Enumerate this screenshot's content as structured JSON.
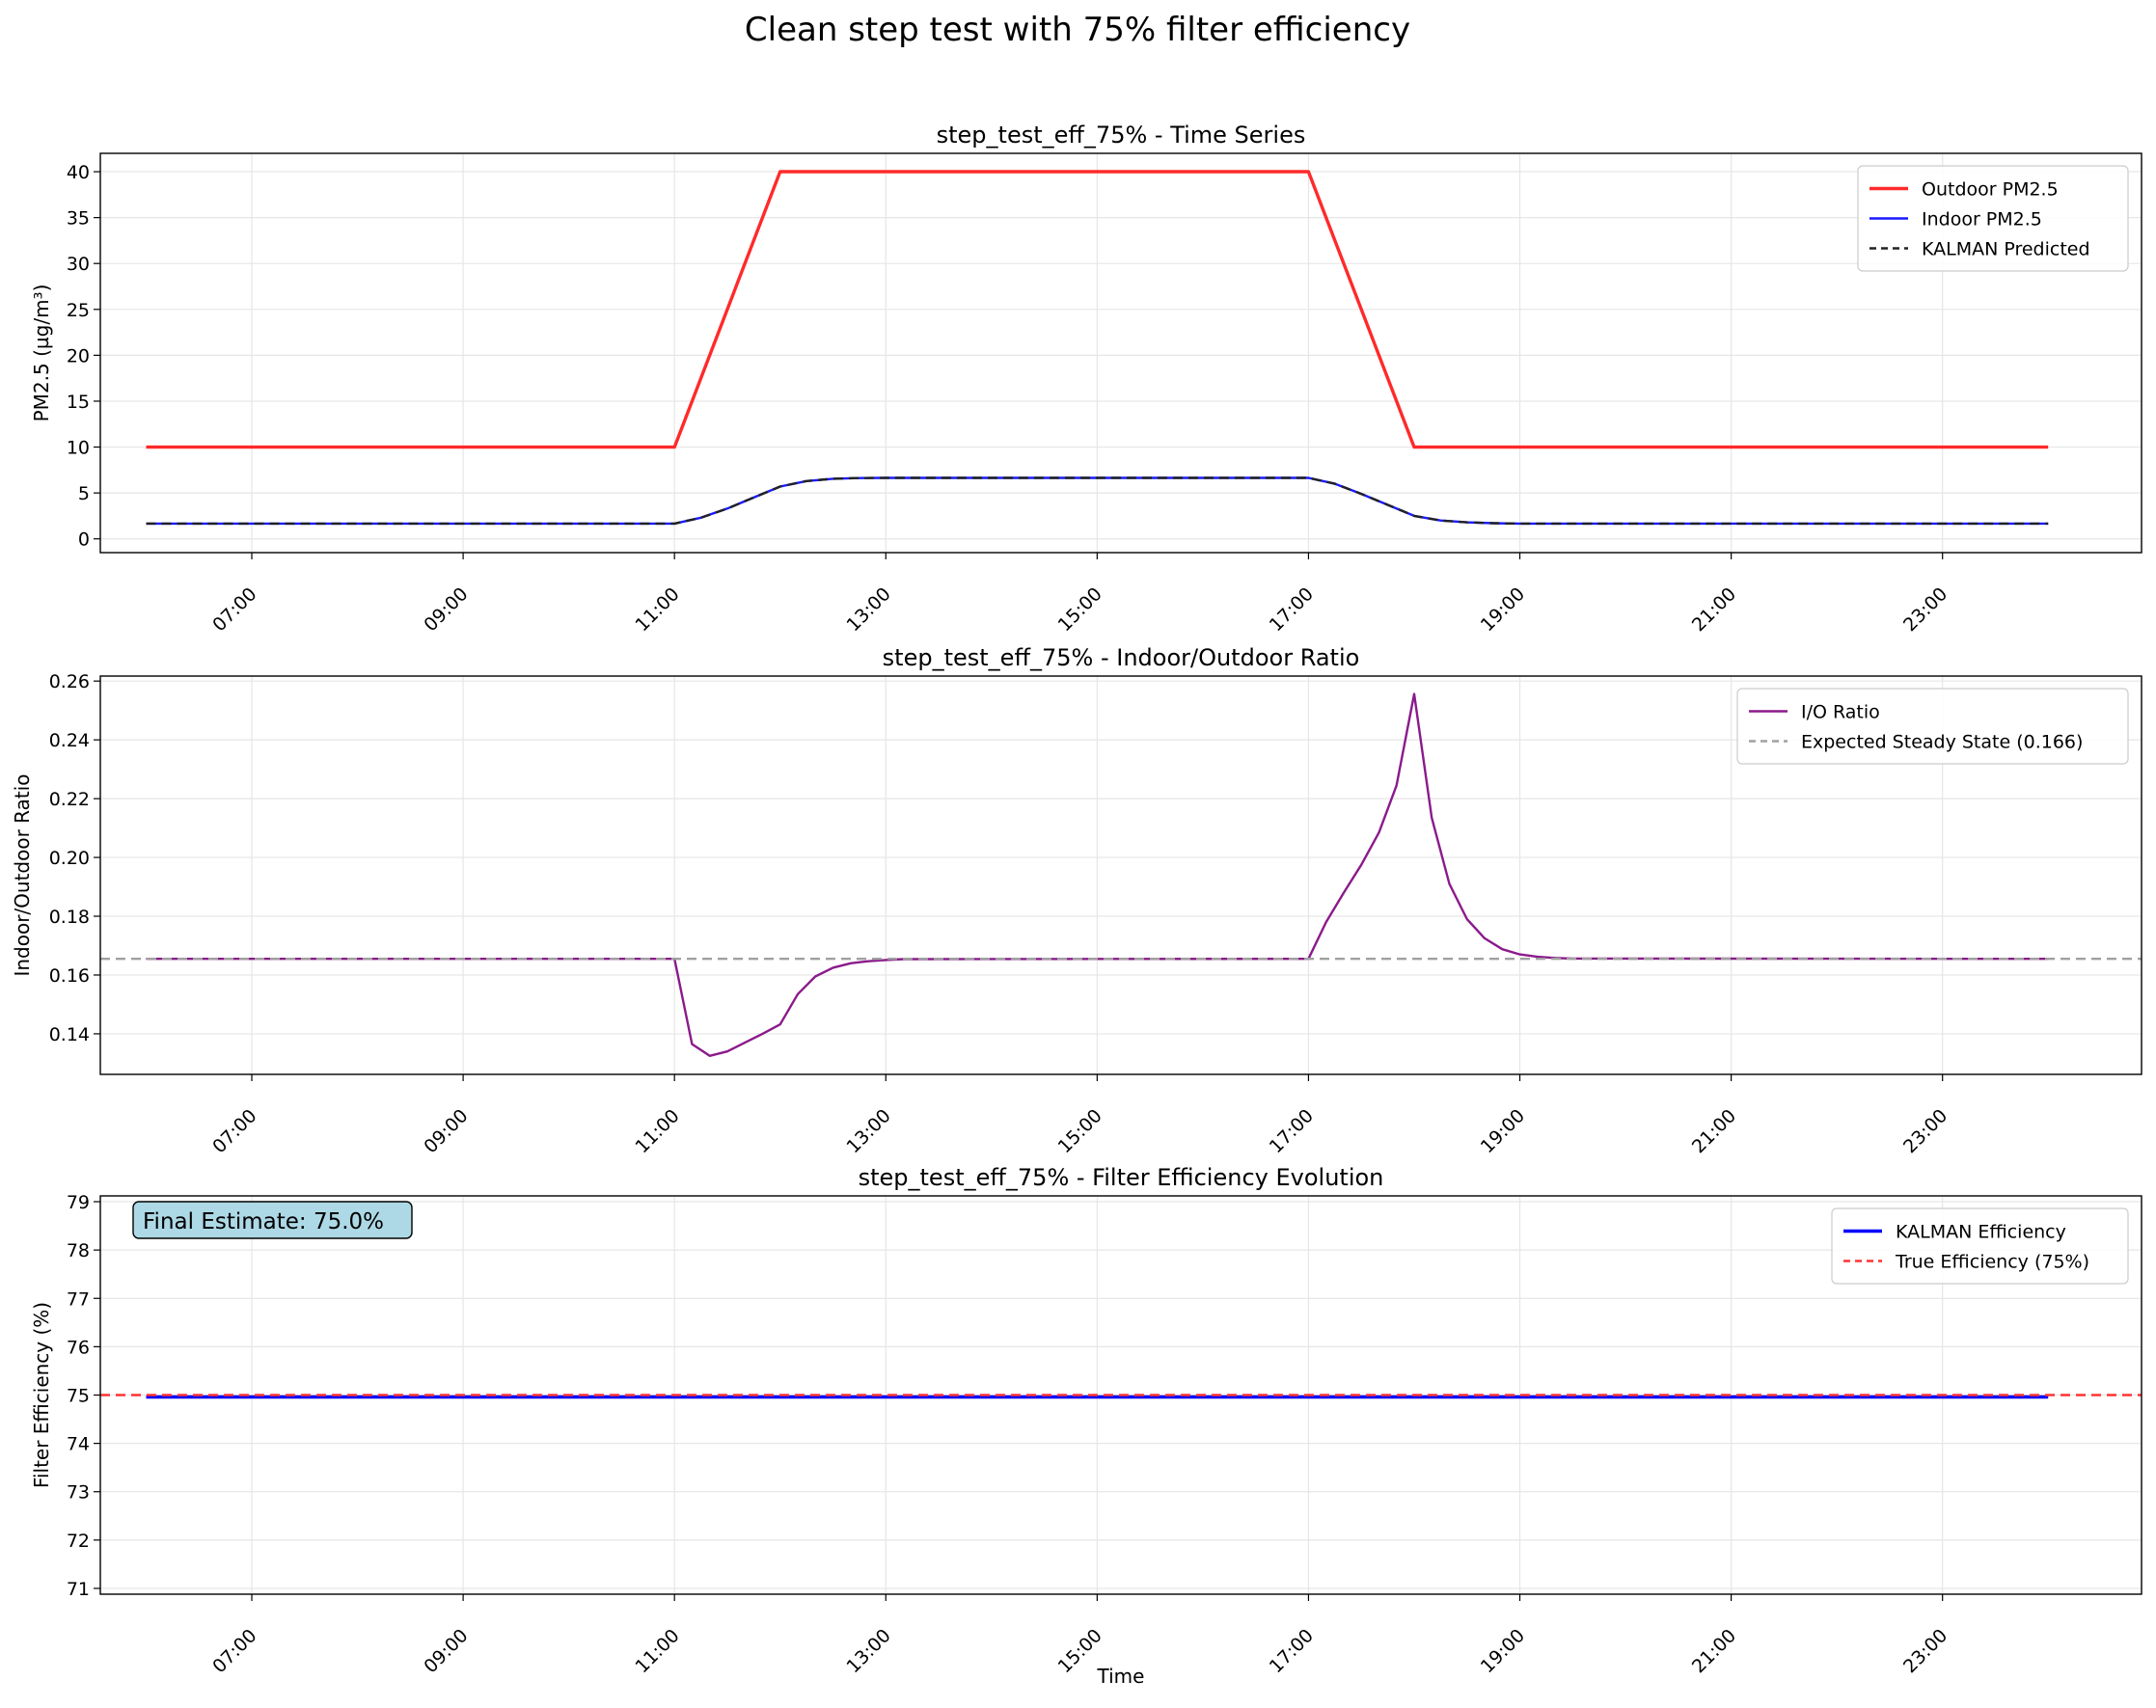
{
  "figure": {
    "title": "Clean step test with 75% filter efficiency"
  },
  "chart_data": [
    {
      "type": "line",
      "title": "step_test_eff_75% - Time Series",
      "xlabel": "",
      "ylabel": "PM2.5 (µg/m³)",
      "x_ticks": [
        "07:00",
        "09:00",
        "11:00",
        "13:00",
        "15:00",
        "17:00",
        "19:00",
        "21:00",
        "23:00"
      ],
      "y_ticks": [
        "0",
        "5",
        "10",
        "15",
        "20",
        "25",
        "30",
        "35",
        "40"
      ],
      "xlim": [
        "05:34",
        "24:53"
      ],
      "ylim": [
        -1.5,
        42
      ],
      "grid": true,
      "legend_position": "upper right",
      "series": [
        {
          "name": "Outdoor PM2.5",
          "color": "#ff2a2a",
          "style": "solid",
          "x": [
            "06:00",
            "11:00",
            "12:00",
            "17:00",
            "18:00",
            "24:00"
          ],
          "values": [
            10,
            10,
            40,
            40,
            10,
            10
          ]
        },
        {
          "name": "Indoor PM2.5",
          "color": "#1a1aff",
          "style": "solid",
          "x": [
            "06:00",
            "11:00",
            "11:15",
            "11:30",
            "11:45",
            "12:00",
            "12:15",
            "12:30",
            "12:45",
            "13:00",
            "17:00",
            "17:15",
            "17:30",
            "17:45",
            "18:00",
            "18:15",
            "18:30",
            "18:45",
            "19:00",
            "24:00"
          ],
          "values": [
            1.66,
            1.66,
            2.3,
            3.3,
            4.5,
            5.7,
            6.3,
            6.55,
            6.62,
            6.64,
            6.64,
            6.0,
            4.9,
            3.7,
            2.5,
            2.0,
            1.8,
            1.7,
            1.66,
            1.66
          ]
        },
        {
          "name": "KALMAN Predicted",
          "color": "#222222",
          "style": "dashed",
          "x": [
            "06:00",
            "11:00",
            "11:15",
            "11:30",
            "11:45",
            "12:00",
            "12:15",
            "12:30",
            "12:45",
            "13:00",
            "17:00",
            "17:15",
            "17:30",
            "17:45",
            "18:00",
            "18:15",
            "18:30",
            "18:45",
            "19:00",
            "24:00"
          ],
          "values": [
            1.66,
            1.66,
            2.3,
            3.3,
            4.5,
            5.7,
            6.3,
            6.55,
            6.62,
            6.64,
            6.64,
            6.0,
            4.9,
            3.7,
            2.5,
            2.0,
            1.8,
            1.7,
            1.66,
            1.66
          ]
        }
      ]
    },
    {
      "type": "line",
      "title": "step_test_eff_75% - Indoor/Outdoor Ratio",
      "xlabel": "",
      "ylabel": "Indoor/Outdoor Ratio",
      "x_ticks": [
        "07:00",
        "09:00",
        "11:00",
        "13:00",
        "15:00",
        "17:00",
        "19:00",
        "21:00",
        "23:00"
      ],
      "y_ticks": [
        "0.14",
        "0.16",
        "0.18",
        "0.20",
        "0.22",
        "0.24",
        "0.26"
      ],
      "xlim": [
        "05:34",
        "24:53"
      ],
      "ylim": [
        0.1262,
        0.2617
      ],
      "grid": true,
      "legend_position": "upper right",
      "series": [
        {
          "name": "I/O Ratio",
          "color": "#8b1a8b",
          "style": "solid",
          "x": [
            "06:00",
            "11:00",
            "11:10",
            "11:20",
            "11:30",
            "11:40",
            "11:50",
            "12:00",
            "12:10",
            "12:20",
            "12:30",
            "12:40",
            "12:50",
            "13:00",
            "13:10",
            "17:00",
            "17:10",
            "17:20",
            "17:30",
            "17:40",
            "17:50",
            "18:00",
            "18:10",
            "18:20",
            "18:30",
            "18:40",
            "18:50",
            "19:00",
            "19:10",
            "19:20",
            "19:30",
            "24:00"
          ],
          "values": [
            0.1655,
            0.1655,
            0.1365,
            0.1325,
            0.134,
            0.137,
            0.14,
            0.1432,
            0.1535,
            0.1595,
            0.1625,
            0.164,
            0.1647,
            0.1651,
            0.1654,
            0.1655,
            0.178,
            0.188,
            0.1975,
            0.2085,
            0.2245,
            0.2556,
            0.2135,
            0.191,
            0.179,
            0.1725,
            0.1688,
            0.167,
            0.1662,
            0.1658,
            0.1656,
            0.1655
          ]
        },
        {
          "name": "Expected Steady State (0.166)",
          "color": "#a0a0a0",
          "style": "dashed",
          "hline": 0.1655
        }
      ]
    },
    {
      "type": "line",
      "title": "step_test_eff_75% - Filter Efficiency Evolution",
      "xlabel": "Time",
      "ylabel": "Filter Efficiency (%)",
      "x_ticks": [
        "07:00",
        "09:00",
        "11:00",
        "13:00",
        "15:00",
        "17:00",
        "19:00",
        "21:00",
        "23:00"
      ],
      "y_ticks": [
        "71",
        "72",
        "73",
        "74",
        "75",
        "76",
        "77",
        "78",
        "79"
      ],
      "xlim": [
        "05:34",
        "24:53"
      ],
      "ylim": [
        70.88,
        79.12
      ],
      "grid": true,
      "legend_position": "upper right",
      "annotation": "Final Estimate: 75.0%",
      "series": [
        {
          "name": "KALMAN Efficiency",
          "color": "#0000ff",
          "style": "solid",
          "x": [
            "06:00",
            "24:00"
          ],
          "values": [
            74.96,
            74.96
          ]
        },
        {
          "name": "True Efficiency (75%)",
          "color": "#ff3333",
          "style": "dashed",
          "hline": 75
        }
      ]
    }
  ]
}
